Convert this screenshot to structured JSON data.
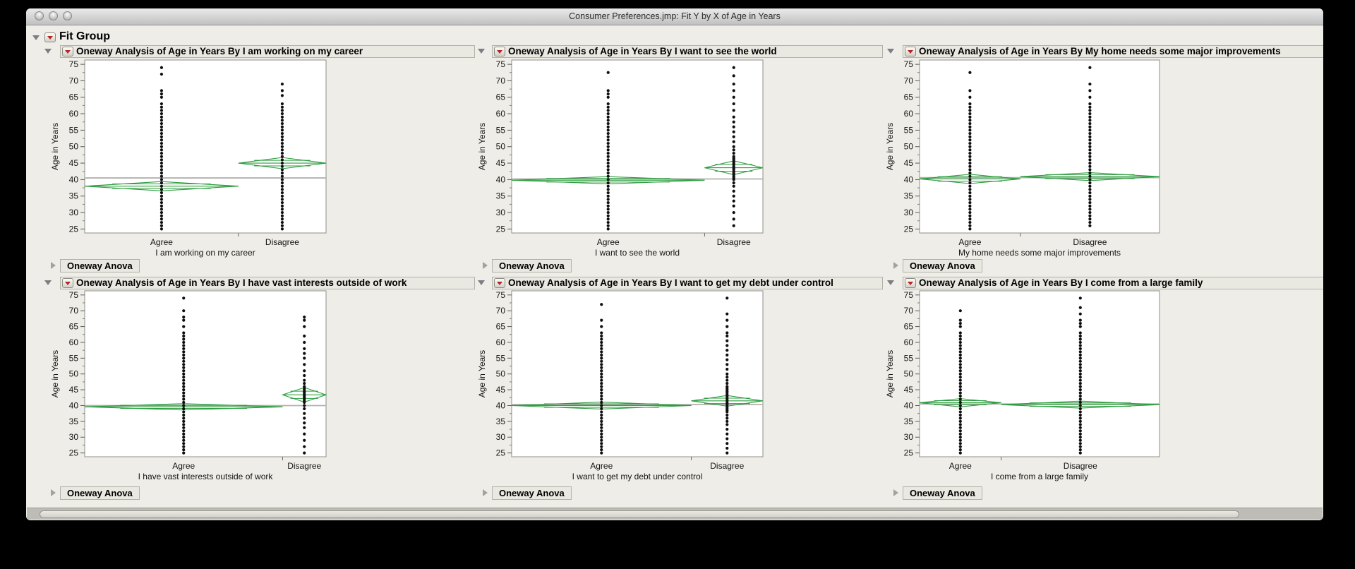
{
  "window": {
    "title": "Consumer Preferences.jmp: Fit Y by X of Age in Years"
  },
  "fit_group_label": "Fit Group",
  "oneway_anova_label": "Oneway Anova",
  "y_axis": {
    "title": "Age in Years",
    "min": 25,
    "max": 75,
    "major_step": 5,
    "minor_step": 2.5
  },
  "categories": [
    "Agree",
    "Disagree"
  ],
  "colors": {
    "diamond_green": "#2f9e41",
    "grand_mean_gray": "#b2b1ad",
    "dot_black": "#0e0e0e",
    "red_triangle": "#b5271d",
    "plot_frame": "#8f8f8b",
    "panel_bg": "#eeede7"
  },
  "chart_data": [
    {
      "type": "scatter",
      "title": "Oneway Analysis of Age in Years By I am working on my career",
      "x_label": "I am working on my career",
      "y_label": "Age in Years",
      "ylim": [
        25,
        75
      ],
      "grand_mean": 40.5,
      "groups": [
        {
          "name": "Agree",
          "width_share": 0.637,
          "mean": 38.0,
          "ci_half": 1.4,
          "dense_range": [
            25,
            63
          ],
          "outliers": [
            65,
            66,
            67,
            72,
            74
          ]
        },
        {
          "name": "Disagree",
          "width_share": 0.363,
          "mean": 45.0,
          "ci_half": 1.7,
          "dense_range": [
            25,
            63
          ],
          "outliers": [
            65.5,
            67,
            69
          ]
        }
      ]
    },
    {
      "type": "scatter",
      "title": "Oneway Analysis of Age in Years By I want to see the world",
      "x_label": "I want to see the world",
      "y_label": "Age in Years",
      "ylim": [
        25,
        75
      ],
      "grand_mean": 40.2,
      "groups": [
        {
          "name": "Agree",
          "width_share": 0.768,
          "mean": 39.8,
          "ci_half": 1.1,
          "dense_range": [
            25,
            63
          ],
          "outliers": [
            65,
            66,
            67,
            72.5
          ]
        },
        {
          "name": "Disagree",
          "width_share": 0.232,
          "mean": 43.6,
          "ci_half": 2.1,
          "points": [
            26,
            28,
            30,
            32,
            33.5,
            35,
            36.5,
            38,
            39,
            40,
            40.5,
            41,
            41.5,
            42,
            42.5,
            43,
            43.5,
            44,
            44.5,
            45,
            45.5,
            46,
            46.5,
            47,
            48,
            49,
            50,
            51.5,
            53,
            54.5,
            56,
            57.5,
            59,
            61,
            63,
            65,
            67,
            69,
            71.5,
            74
          ]
        }
      ]
    },
    {
      "type": "scatter",
      "title": "Oneway Analysis of Age in Years By My home needs some major improvements",
      "x_label": "My home needs some major improvements",
      "y_label": "Age in Years",
      "ylim": [
        25,
        75
      ],
      "grand_mean": 40.6,
      "groups": [
        {
          "name": "Agree",
          "width_share": 0.42,
          "mean": 40.2,
          "ci_half": 1.4,
          "dense_range": [
            25,
            63
          ],
          "outliers": [
            65,
            67,
            72.5
          ]
        },
        {
          "name": "Disagree",
          "width_share": 0.58,
          "mean": 40.9,
          "ci_half": 1.2,
          "dense_range": [
            26,
            63
          ],
          "outliers": [
            65,
            67,
            69,
            74
          ]
        }
      ]
    },
    {
      "type": "scatter",
      "title": "Oneway Analysis of Age in Years By I have vast interests outside of work",
      "x_label": "I have vast interests outside of work",
      "y_label": "Age in Years",
      "ylim": [
        25,
        75
      ],
      "grand_mean": 40.0,
      "groups": [
        {
          "name": "Agree",
          "width_share": 0.82,
          "mean": 39.6,
          "ci_half": 1.0,
          "dense_range": [
            25,
            63
          ],
          "outliers": [
            65,
            67,
            68,
            70,
            74
          ]
        },
        {
          "name": "Disagree",
          "width_share": 0.18,
          "mean": 43.4,
          "ci_half": 2.3,
          "points": [
            25,
            27,
            29,
            31,
            33,
            34.5,
            36,
            37.5,
            39,
            40,
            41,
            41.5,
            42,
            42.5,
            43,
            43.5,
            44,
            44.5,
            45,
            45.5,
            46,
            47,
            48,
            49.5,
            51,
            53,
            55,
            56.5,
            58,
            60,
            62,
            65,
            67,
            68
          ]
        }
      ]
    },
    {
      "type": "scatter",
      "title": "Oneway Analysis of Age in Years By I want to get my debt under control",
      "x_label": "I want to get my debt under control",
      "y_label": "Age in Years",
      "ylim": [
        25,
        75
      ],
      "grand_mean": 40.3,
      "groups": [
        {
          "name": "Agree",
          "width_share": 0.715,
          "mean": 40.0,
          "ci_half": 1.1,
          "dense_range": [
            25,
            63
          ],
          "outliers": [
            65,
            67,
            72
          ]
        },
        {
          "name": "Disagree",
          "width_share": 0.285,
          "mean": 41.5,
          "ci_half": 1.7,
          "points": [
            25,
            26.5,
            28,
            29.5,
            31,
            32.5,
            34,
            35,
            36,
            37,
            38,
            38.5,
            39,
            39.5,
            40,
            40.5,
            41,
            41.5,
            42,
            42.5,
            43,
            43.5,
            44,
            44.5,
            45,
            45.5,
            46,
            47,
            48,
            49,
            50,
            51.5,
            53,
            54.5,
            56,
            57.5,
            59,
            60.5,
            62,
            63,
            65,
            67,
            69,
            74
          ]
        }
      ]
    },
    {
      "type": "scatter",
      "title": "Oneway Analysis of Age in Years By I come from a large family",
      "x_label": "I come from a large family",
      "y_label": "Age in Years",
      "ylim": [
        25,
        75
      ],
      "grand_mean": 40.5,
      "groups": [
        {
          "name": "Agree",
          "width_share": 0.34,
          "mean": 40.9,
          "ci_half": 1.3,
          "dense_range": [
            25,
            63
          ],
          "outliers": [
            65,
            66,
            67,
            70
          ]
        },
        {
          "name": "Disagree",
          "width_share": 0.66,
          "mean": 40.3,
          "ci_half": 1.1,
          "dense_range": [
            25,
            63
          ],
          "outliers": [
            65,
            66,
            67,
            69,
            71,
            74
          ]
        }
      ]
    }
  ]
}
